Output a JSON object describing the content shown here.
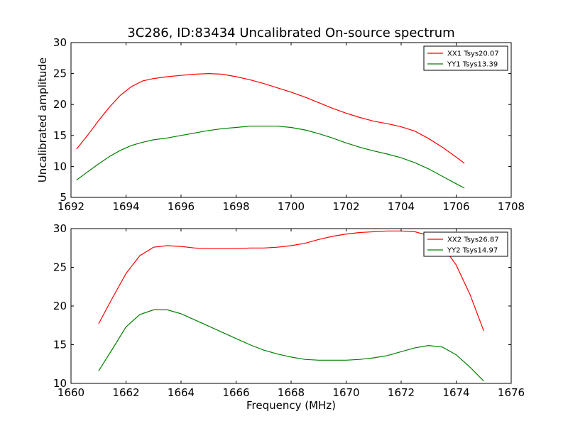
{
  "figure": {
    "title": "3C286, ID:83434 Uncalibrated On-source spectrum",
    "xlabel": "Frequency (MHz)"
  },
  "chart_data": [
    {
      "type": "line",
      "ylabel": "Uncalibrated amplitude",
      "xlim": [
        1692,
        1708
      ],
      "ylim": [
        5,
        30
      ],
      "x_ticks": [
        1692,
        1694,
        1696,
        1698,
        1700,
        1702,
        1704,
        1706,
        1708
      ],
      "y_ticks": [
        5,
        10,
        15,
        20,
        25,
        30
      ],
      "legend_position": "top-right",
      "series": [
        {
          "name": "XX1 Tsys20.07",
          "color": "#ff0000",
          "x": [
            1692.2,
            1692.6,
            1693.0,
            1693.4,
            1693.8,
            1694.2,
            1694.6,
            1695.0,
            1695.5,
            1696.0,
            1696.5,
            1697.0,
            1697.5,
            1698.0,
            1698.5,
            1699.0,
            1699.5,
            1700.0,
            1700.5,
            1701.0,
            1701.5,
            1702.0,
            1702.5,
            1703.0,
            1703.5,
            1704.0,
            1704.5,
            1705.0,
            1705.5,
            1706.0,
            1706.3
          ],
          "y": [
            12.8,
            15.0,
            17.4,
            19.6,
            21.5,
            22.9,
            23.8,
            24.2,
            24.5,
            24.7,
            24.9,
            25.0,
            24.9,
            24.5,
            24.0,
            23.4,
            22.7,
            22.0,
            21.2,
            20.3,
            19.4,
            18.6,
            17.9,
            17.3,
            16.9,
            16.4,
            15.7,
            14.5,
            13.1,
            11.5,
            10.5
          ]
        },
        {
          "name": "YY1 Tsys13.39",
          "color": "#008000",
          "x": [
            1692.2,
            1692.6,
            1693.0,
            1693.4,
            1693.8,
            1694.2,
            1694.6,
            1695.0,
            1695.5,
            1696.0,
            1696.5,
            1697.0,
            1697.5,
            1698.0,
            1698.5,
            1699.0,
            1699.5,
            1700.0,
            1700.5,
            1701.0,
            1701.5,
            1702.0,
            1702.5,
            1703.0,
            1703.5,
            1704.0,
            1704.5,
            1705.0,
            1705.5,
            1706.0,
            1706.3
          ],
          "y": [
            7.8,
            9.1,
            10.4,
            11.6,
            12.6,
            13.4,
            13.9,
            14.3,
            14.6,
            15.0,
            15.4,
            15.8,
            16.1,
            16.3,
            16.5,
            16.5,
            16.5,
            16.3,
            15.9,
            15.3,
            14.6,
            13.8,
            13.1,
            12.5,
            12.0,
            11.4,
            10.6,
            9.6,
            8.4,
            7.2,
            6.5
          ]
        }
      ]
    },
    {
      "type": "line",
      "xlabel": "Frequency (MHz)",
      "xlim": [
        1660,
        1676
      ],
      "ylim": [
        10,
        30
      ],
      "x_ticks": [
        1660,
        1662,
        1664,
        1666,
        1668,
        1670,
        1672,
        1674,
        1676
      ],
      "y_ticks": [
        10,
        15,
        20,
        25,
        30
      ],
      "legend_position": "top-right",
      "series": [
        {
          "name": "XX2 Tsys26.87",
          "color": "#ff0000",
          "x": [
            1661.0,
            1661.5,
            1662.0,
            1662.5,
            1663.0,
            1663.5,
            1664.0,
            1664.5,
            1665.0,
            1665.5,
            1666.0,
            1666.5,
            1667.0,
            1667.5,
            1668.0,
            1668.5,
            1669.0,
            1669.5,
            1670.0,
            1670.5,
            1671.0,
            1671.5,
            1672.0,
            1672.5,
            1673.0,
            1673.5,
            1674.0,
            1674.5,
            1675.0
          ],
          "y": [
            17.7,
            21.0,
            24.2,
            26.5,
            27.6,
            27.8,
            27.7,
            27.5,
            27.4,
            27.4,
            27.4,
            27.5,
            27.5,
            27.6,
            27.8,
            28.1,
            28.6,
            29.0,
            29.3,
            29.5,
            29.6,
            29.7,
            29.7,
            29.6,
            29.1,
            27.8,
            25.3,
            21.5,
            16.8
          ]
        },
        {
          "name": "YY2 Tsys14.97",
          "color": "#008000",
          "x": [
            1661.0,
            1661.5,
            1662.0,
            1662.5,
            1663.0,
            1663.5,
            1664.0,
            1664.5,
            1665.0,
            1665.5,
            1666.0,
            1666.5,
            1667.0,
            1667.5,
            1668.0,
            1668.5,
            1669.0,
            1669.5,
            1670.0,
            1670.5,
            1671.0,
            1671.5,
            1672.0,
            1672.5,
            1673.0,
            1673.5,
            1674.0,
            1674.5,
            1675.0
          ],
          "y": [
            11.6,
            14.4,
            17.3,
            18.9,
            19.5,
            19.5,
            19.0,
            18.2,
            17.4,
            16.6,
            15.8,
            15.0,
            14.3,
            13.8,
            13.4,
            13.1,
            13.0,
            13.0,
            13.0,
            13.1,
            13.3,
            13.6,
            14.1,
            14.6,
            14.9,
            14.7,
            13.7,
            12.1,
            10.3
          ]
        }
      ]
    }
  ]
}
